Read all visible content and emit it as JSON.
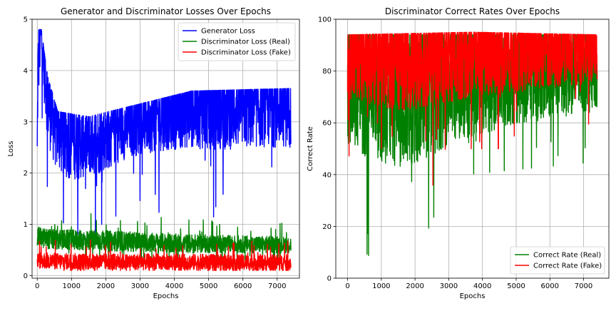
{
  "chart_data": [
    {
      "type": "line",
      "title": "Generator and Discriminator Losses Over Epochs",
      "xlabel": "Epochs",
      "ylabel": "Loss",
      "xlim": [
        -150,
        7650
      ],
      "ylim": [
        -0.05,
        5.0
      ],
      "xticks": [
        0,
        1000,
        2000,
        3000,
        4000,
        5000,
        6000,
        7000
      ],
      "yticks": [
        0,
        1,
        2,
        3,
        4,
        5
      ],
      "grid": true,
      "legend_position": "top-right",
      "series": [
        {
          "name": "Generator Loss",
          "color": "#0000ff",
          "profile": [
            [
              0,
              2.3
            ],
            [
              20,
              4.0
            ],
            [
              100,
              4.8
            ],
            [
              200,
              4.2
            ],
            [
              300,
              3.5
            ],
            [
              500,
              3.0
            ],
            [
              800,
              2.7
            ],
            [
              1200,
              2.6
            ],
            [
              1800,
              2.65
            ],
            [
              2500,
              2.9
            ],
            [
              3500,
              3.1
            ],
            [
              4500,
              3.25
            ],
            [
              5500,
              3.25
            ],
            [
              6500,
              3.3
            ],
            [
              7400,
              3.3
            ]
          ],
          "jitter": [
            [
              0,
              0.9
            ],
            [
              400,
              1.1
            ],
            [
              1500,
              0.85
            ],
            [
              3000,
              0.8
            ],
            [
              5000,
              1.0
            ],
            [
              7400,
              1.0
            ]
          ],
          "range_max": [
            [
              0,
              4.8
            ],
            [
              120,
              4.8
            ],
            [
              300,
              3.9
            ],
            [
              600,
              3.2
            ],
            [
              1500,
              3.1
            ],
            [
              3000,
              3.35
            ],
            [
              4500,
              3.6
            ],
            [
              7400,
              3.65
            ]
          ]
        },
        {
          "name": "Discriminator Loss (Real)",
          "color": "#008000",
          "profile": [
            [
              0,
              0.75
            ],
            [
              500,
              0.7
            ],
            [
              2000,
              0.68
            ],
            [
              4000,
              0.63
            ],
            [
              7400,
              0.6
            ]
          ],
          "jitter": [
            [
              0,
              0.25
            ],
            [
              2000,
              0.25
            ],
            [
              7400,
              0.2
            ]
          ],
          "range_max": [
            [
              0,
              1.3
            ],
            [
              7400,
              1.35
            ]
          ]
        },
        {
          "name": "Discriminator Loss (Fake)",
          "color": "#ff0000",
          "profile": [
            [
              0,
              0.3
            ],
            [
              500,
              0.28
            ],
            [
              2000,
              0.27
            ],
            [
              7400,
              0.25
            ]
          ],
          "jitter": [
            [
              0,
              0.2
            ],
            [
              7400,
              0.2
            ]
          ],
          "range_max": [
            [
              0,
              1.1
            ],
            [
              7400,
              0.75
            ]
          ]
        }
      ]
    },
    {
      "type": "line",
      "title": "Discriminator Correct Rates Over Epochs",
      "xlabel": "Epochs",
      "ylabel": "Correct Rate",
      "xlim": [
        -350,
        7750
      ],
      "ylim": [
        0,
        100
      ],
      "xticks": [
        0,
        1000,
        2000,
        3000,
        4000,
        5000,
        6000,
        7000
      ],
      "yticks": [
        0,
        20,
        40,
        60,
        80,
        100
      ],
      "grid": true,
      "legend_position": "bottom-right",
      "series": [
        {
          "name": "Correct Rate (Real)",
          "color": "#008000",
          "profile": [
            [
              0,
              75
            ],
            [
              500,
              72
            ],
            [
              1500,
              70
            ],
            [
              3000,
              75
            ],
            [
              5000,
              80
            ],
            [
              7400,
              82
            ]
          ],
          "jitter": [
            [
              0,
              30
            ],
            [
              1800,
              35
            ],
            [
              3500,
              28
            ],
            [
              7400,
              22
            ]
          ],
          "range_min": [
            [
              0,
              10
            ],
            [
              2000,
              6
            ],
            [
              3500,
              40
            ],
            [
              7400,
              45
            ]
          ],
          "range_max": [
            [
              0,
              94
            ],
            [
              7400,
              94
            ]
          ]
        },
        {
          "name": "Correct Rate (Fake)",
          "color": "#ff0000",
          "profile": [
            [
              0,
              85
            ],
            [
              1000,
              84
            ],
            [
              2000,
              85
            ],
            [
              4000,
              88
            ],
            [
              7400,
              90
            ]
          ],
          "jitter": [
            [
              0,
              20
            ],
            [
              1800,
              25
            ],
            [
              7400,
              18
            ]
          ],
          "range_min": [
            [
              0,
              48
            ],
            [
              1800,
              14
            ],
            [
              3000,
              50
            ],
            [
              7400,
              50
            ]
          ],
          "range_max": [
            [
              0,
              94
            ],
            [
              3700,
              95
            ],
            [
              7400,
              94
            ]
          ]
        }
      ]
    }
  ]
}
